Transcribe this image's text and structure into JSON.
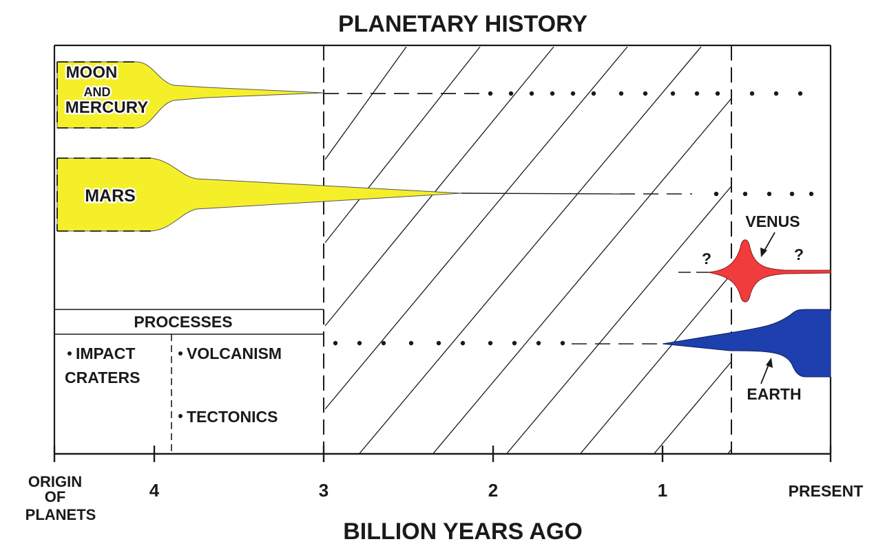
{
  "title": "PLANETARY HISTORY",
  "x_axis": {
    "title": "BILLION YEARS AGO",
    "ticks": [
      {
        "label": "4",
        "value": 4
      },
      {
        "label": "3",
        "value": 3
      },
      {
        "label": "2",
        "value": 2
      },
      {
        "label": "1",
        "value": 1
      }
    ],
    "left_end_label": [
      "ORIGIN",
      "OF",
      "PLANETS"
    ],
    "right_end_label": "PRESENT"
  },
  "bodies": {
    "moon_mercury": {
      "label_top": "MOON",
      "label_mid": "AND",
      "label_bottom": "MERCURY",
      "color": "#f5ef2a"
    },
    "mars": {
      "label": "MARS",
      "color": "#f5ef2a"
    },
    "venus": {
      "label": "VENUS",
      "uncertain_left": "?",
      "uncertain_right": "?",
      "color": "#f03c3c"
    },
    "earth": {
      "label": "EARTH",
      "color": "#1e3fae"
    }
  },
  "processes": {
    "header": "PROCESSES",
    "impact_line1": "IMPACT",
    "impact_line2": "CRATERS",
    "volcanism": "VOLCANISM",
    "tectonics": "TECTONICS"
  }
}
